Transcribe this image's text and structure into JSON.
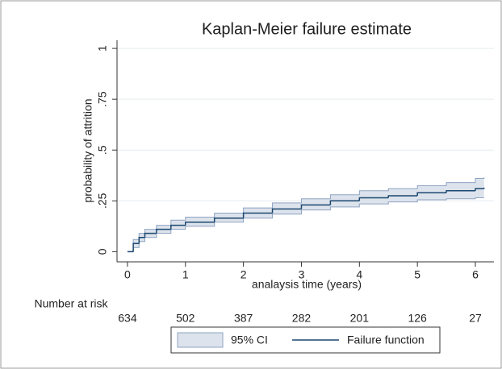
{
  "chart_data": {
    "type": "step",
    "title": "Kaplan-Meier failure estimate",
    "x_label": "analaysis time (years)",
    "y_label": "probability of attrition",
    "xlim": [
      -0.18,
      6.32
    ],
    "ylim": [
      -0.05,
      1.04
    ],
    "xticks": [
      0,
      1,
      2,
      3,
      4,
      5,
      6
    ],
    "yticks": [
      0,
      {
        "value": 0.25,
        "label": ".25"
      },
      {
        "value": 0.5,
        "label": ".5"
      },
      {
        "value": 0.75,
        "label": ".75"
      },
      1
    ],
    "grid": true,
    "x": [
      0,
      0.1,
      0.2,
      0.3,
      0.5,
      0.75,
      1,
      1.5,
      2,
      2.5,
      3,
      3.5,
      4,
      4.5,
      5,
      5.5,
      6,
      6.15
    ],
    "band": {
      "name": "95% CI",
      "color": "#dde3ec",
      "edge": "#8ea3c2",
      "lower": [
        0,
        0.02,
        0.05,
        0.07,
        0.09,
        0.11,
        0.125,
        0.145,
        0.165,
        0.185,
        0.205,
        0.22,
        0.235,
        0.245,
        0.255,
        0.26,
        0.265,
        0.265
      ],
      "upper": [
        0,
        0.06,
        0.09,
        0.11,
        0.13,
        0.155,
        0.17,
        0.19,
        0.215,
        0.24,
        0.26,
        0.28,
        0.3,
        0.31,
        0.325,
        0.34,
        0.36,
        0.365
      ]
    },
    "series": [
      {
        "name": "Failure function",
        "color": "#1a476f",
        "values": [
          0,
          0.04,
          0.07,
          0.09,
          0.11,
          0.13,
          0.145,
          0.165,
          0.19,
          0.21,
          0.23,
          0.25,
          0.265,
          0.275,
          0.29,
          0.3,
          0.31,
          0.315
        ]
      }
    ],
    "risk_table": {
      "title": "Number at risk",
      "values": [
        634,
        502,
        387,
        282,
        201,
        126,
        27
      ]
    }
  }
}
